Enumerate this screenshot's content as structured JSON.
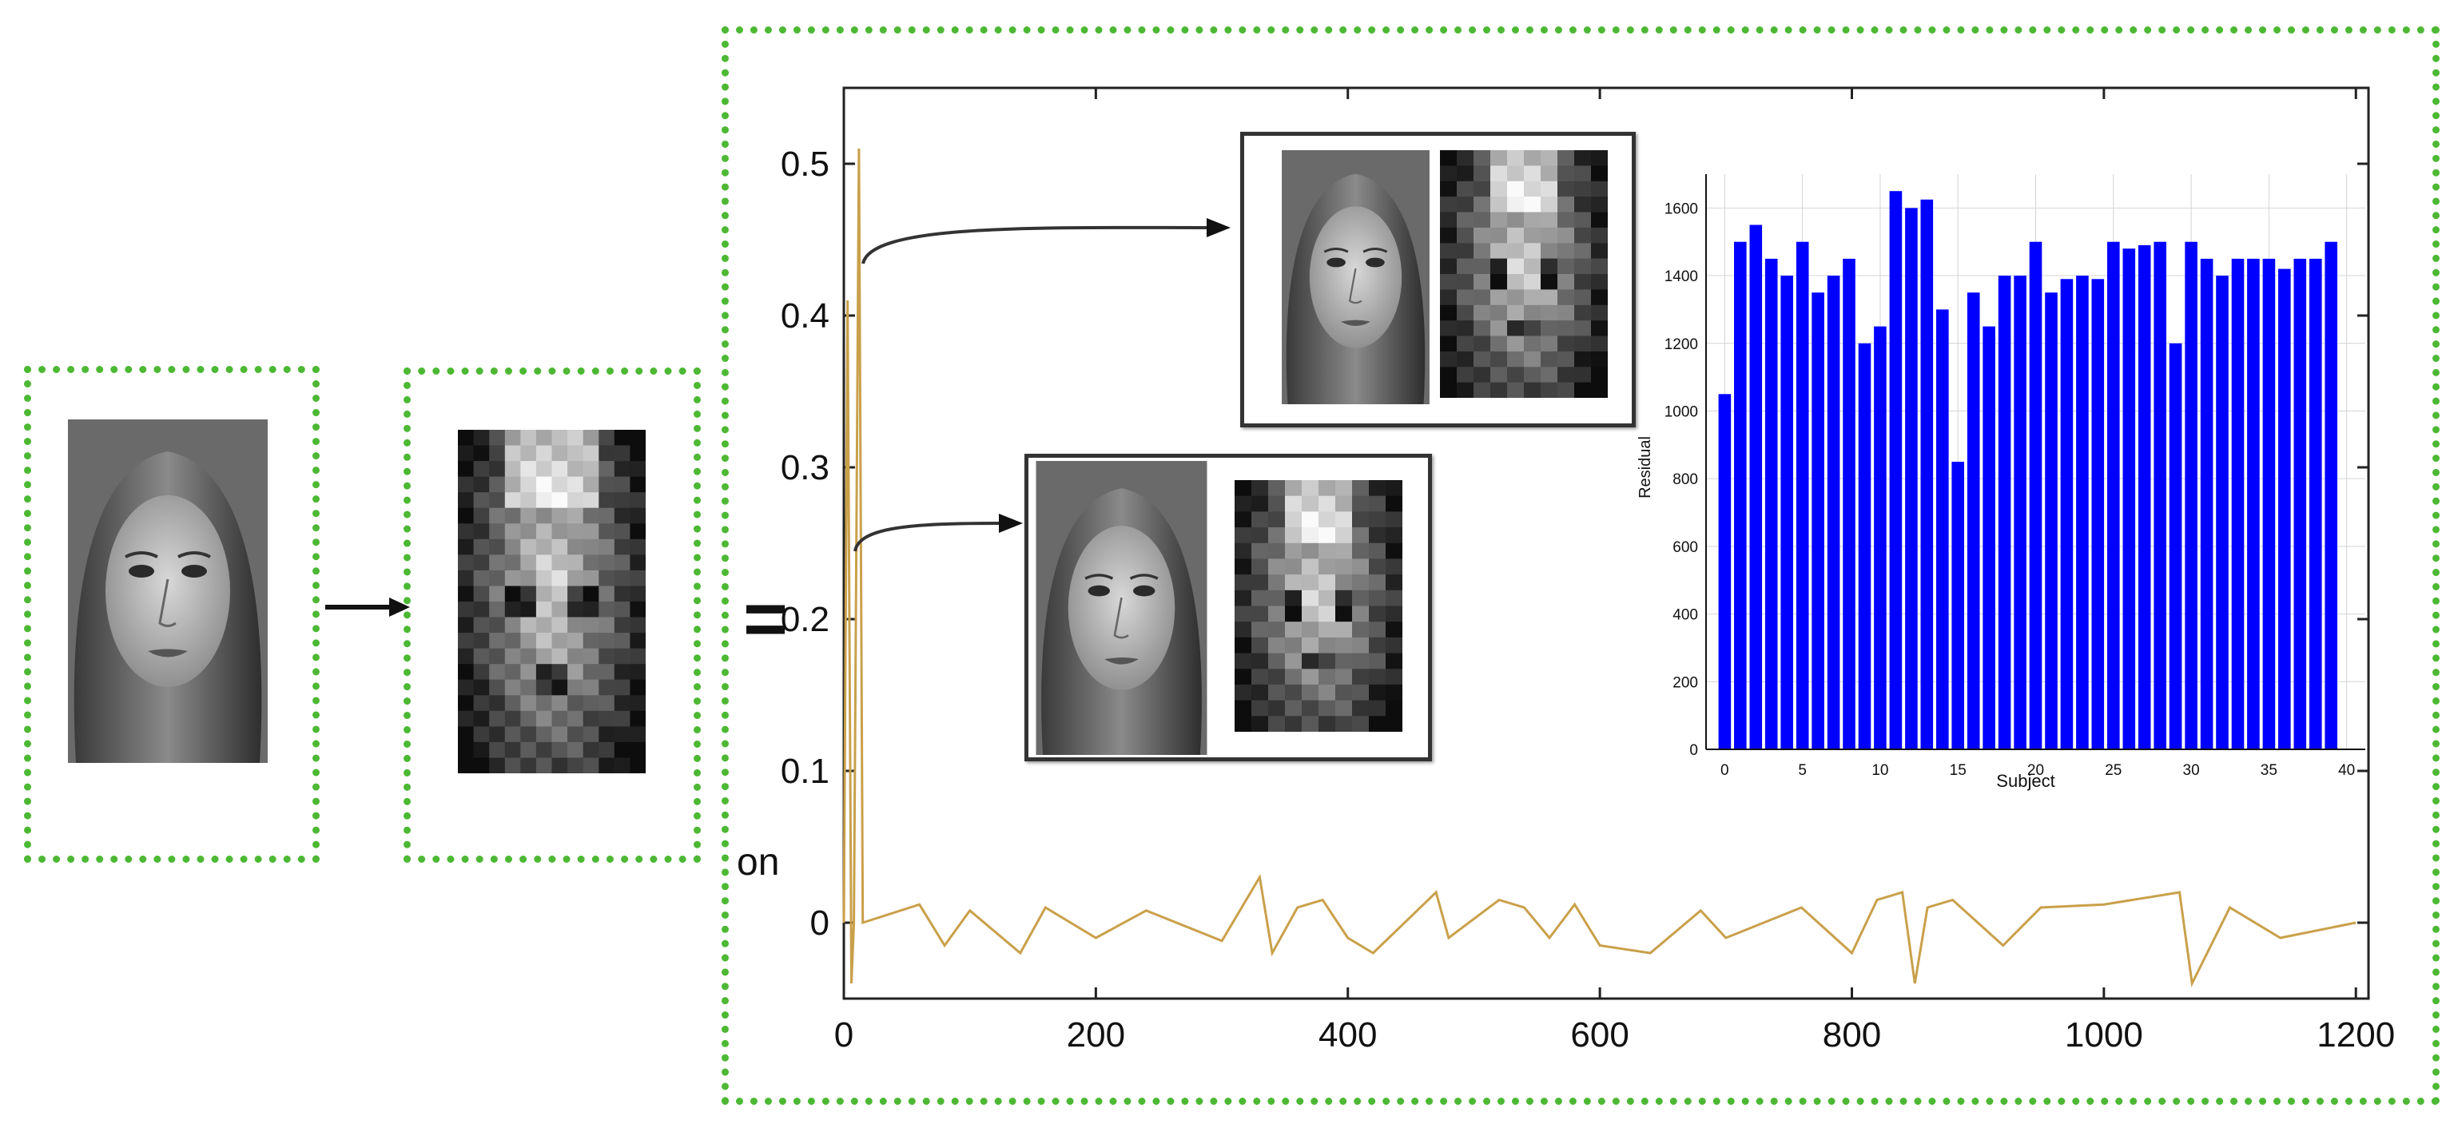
{
  "chart_data": [
    {
      "type": "line",
      "x_ticks": [
        0,
        200,
        400,
        600,
        800,
        1000,
        1200
      ],
      "y_ticks": [
        0,
        0.1,
        0.2,
        0.3,
        0.4,
        0.5
      ],
      "y_tick_labels": [
        "0",
        "0.1",
        "0.2",
        "0.3",
        "0.4",
        "0.5"
      ],
      "xlim": [
        0,
        1210
      ],
      "ylim": [
        -0.05,
        0.55
      ],
      "series": [
        {
          "color": "#c9a04a",
          "points": [
            [
              0,
              0
            ],
            [
              3,
              0.41
            ],
            [
              6,
              -0.04
            ],
            [
              8,
              0
            ],
            [
              12,
              0.51
            ],
            [
              15,
              0
            ],
            [
              60,
              0.012
            ],
            [
              80,
              -0.015
            ],
            [
              100,
              0.008
            ],
            [
              140,
              -0.02
            ],
            [
              160,
              0.01
            ],
            [
              200,
              -0.01
            ],
            [
              240,
              0.008
            ],
            [
              300,
              -0.012
            ],
            [
              330,
              0.03
            ],
            [
              340,
              -0.02
            ],
            [
              360,
              0.01
            ],
            [
              380,
              0.015
            ],
            [
              400,
              -0.01
            ],
            [
              420,
              -0.02
            ],
            [
              460,
              0.012
            ],
            [
              470,
              0.02
            ],
            [
              480,
              -0.01
            ],
            [
              520,
              0.015
            ],
            [
              540,
              0.01
            ],
            [
              560,
              -0.01
            ],
            [
              580,
              0.012
            ],
            [
              600,
              -0.015
            ],
            [
              640,
              -0.02
            ],
            [
              680,
              0.008
            ],
            [
              700,
              -0.01
            ],
            [
              760,
              0.01
            ],
            [
              800,
              -0.02
            ],
            [
              820,
              0.015
            ],
            [
              840,
              0.02
            ],
            [
              850,
              -0.04
            ],
            [
              860,
              0.01
            ],
            [
              880,
              0.015
            ],
            [
              920,
              -0.015
            ],
            [
              950,
              0.01
            ],
            [
              1000,
              0.012
            ],
            [
              1060,
              0.02
            ],
            [
              1070,
              -0.04
            ],
            [
              1100,
              0.01
            ],
            [
              1140,
              -0.01
            ],
            [
              1200,
              0
            ]
          ]
        }
      ]
    },
    {
      "type": "bar",
      "xlabel": "Subject",
      "ylabel": "Residual",
      "xlim": [
        -1.2,
        41.2
      ],
      "ylim": [
        0,
        1700
      ],
      "x_ticks": [
        0,
        5,
        10,
        15,
        20,
        25,
        30,
        35,
        40
      ],
      "y_ticks": [
        0,
        200,
        400,
        600,
        800,
        1000,
        1200,
        1400,
        1600
      ],
      "grid": true,
      "bar_color": "#0000ff",
      "categories": [
        0,
        1,
        2,
        3,
        4,
        5,
        6,
        7,
        8,
        9,
        10,
        11,
        12,
        13,
        14,
        15,
        16,
        17,
        18,
        19,
        20,
        21,
        22,
        23,
        24,
        25,
        26,
        27,
        28,
        29,
        30,
        31,
        32,
        33,
        34,
        35,
        36,
        37,
        38,
        39
      ],
      "values": [
        1050,
        1500,
        1550,
        1450,
        1400,
        1500,
        1350,
        1400,
        1450,
        1200,
        1250,
        1650,
        1600,
        1625,
        1300,
        850,
        1350,
        1250,
        1400,
        1400,
        1500,
        1350,
        1390,
        1400,
        1390,
        1500,
        1480,
        1490,
        1500,
        1200,
        1500,
        1450,
        1400,
        1450,
        1450,
        1450,
        1420,
        1450,
        1450,
        1500
      ]
    }
  ],
  "labels": {
    "equals": "=",
    "on": "on"
  },
  "colors": {
    "dash_border": "#4cb833",
    "arrow": "#111111",
    "series_line": "#c9a04a",
    "bar_fill": "#0000ff"
  },
  "images": {
    "face_photo": "grayscale-face-photo",
    "face_pixelated": "pixelated-face"
  }
}
